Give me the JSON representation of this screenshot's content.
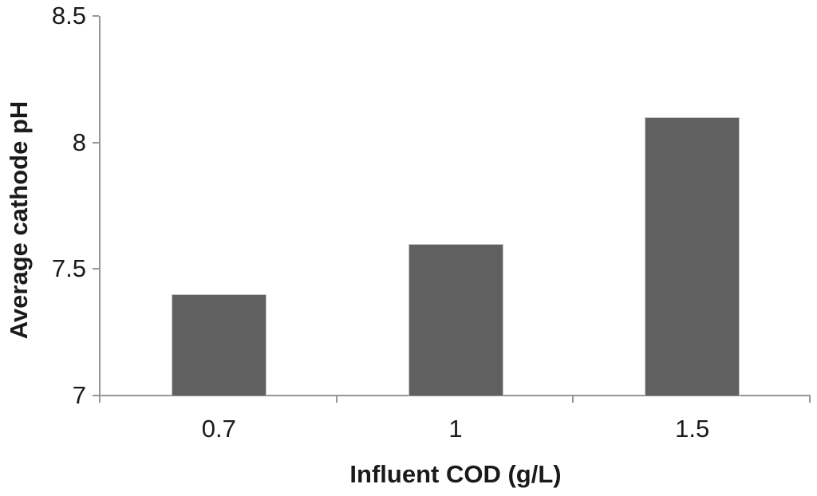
{
  "chart_data": {
    "type": "bar",
    "title": "",
    "categories": [
      "0.7",
      "1",
      "1.5"
    ],
    "values": [
      7.4,
      7.6,
      8.1
    ],
    "series": [
      {
        "name": "Average cathode pH",
        "values": [
          7.4,
          7.6,
          8.1
        ]
      }
    ],
    "xlabel": "Influent COD (g/L)",
    "ylabel": "Average cathode pH",
    "ylim": [
      7,
      8.5
    ],
    "ytick_values": [
      7,
      7.5,
      8,
      8.5
    ],
    "ytick_labels": [
      "7",
      "7.5",
      "8",
      "8.5"
    ],
    "grid": false,
    "legend": false,
    "legend_position": "none",
    "colors": {
      "bar_fill": "#606060",
      "bar_border": "#c6c6c6",
      "axis_line": "#969696",
      "text": "#1a1a1a",
      "background": "#ffffff"
    }
  }
}
